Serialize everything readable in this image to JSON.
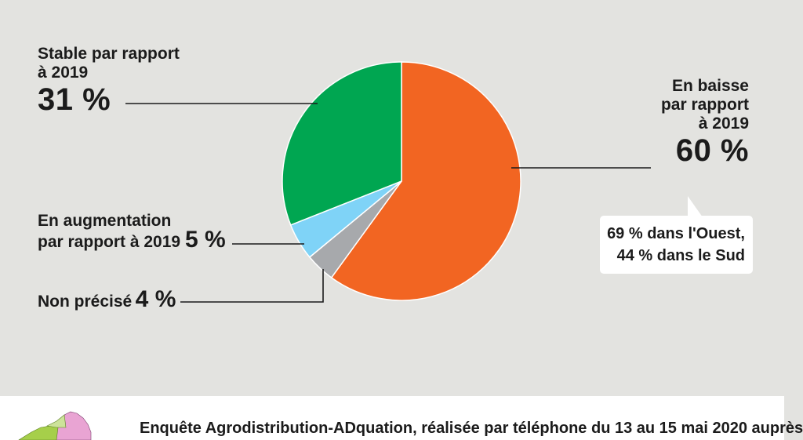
{
  "chart_data": {
    "type": "pie",
    "slices": [
      {
        "label": "En baisse par rapport à 2019",
        "value": 60,
        "value_text": "60 %",
        "color": "#f26522"
      },
      {
        "label": "Non précisé",
        "value": 4,
        "value_text": "4 %",
        "color": "#a7a9ac"
      },
      {
        "label": "En augmentation par rapport à 2019",
        "value": 5,
        "value_text": "5 %",
        "color": "#7fd3f7"
      },
      {
        "label": "Stable par rapport à 2019",
        "value": 31,
        "value_text": "31 %",
        "color": "#00a651"
      }
    ]
  },
  "labels": {
    "stable": {
      "line1": "Stable par rapport",
      "line2": "à 2019",
      "value": "31 %"
    },
    "baisse": {
      "line1": "En baisse",
      "line2": "par rapport",
      "line3": "à 2019",
      "value": "60 %"
    },
    "augmentation": {
      "line1": "En augmentation",
      "line2": "par rapport à 2019",
      "value": "5 %"
    },
    "non_precise": {
      "line1": "Non précisé",
      "value": "4 %"
    }
  },
  "note": {
    "line1": "69 % dans l'Ouest,",
    "line2": "44 % dans le Sud"
  },
  "footer": {
    "text": "Enquête Agrodistribution-ADquation, réalisée par téléphone du 13 au 15 mai 2020 auprès"
  }
}
